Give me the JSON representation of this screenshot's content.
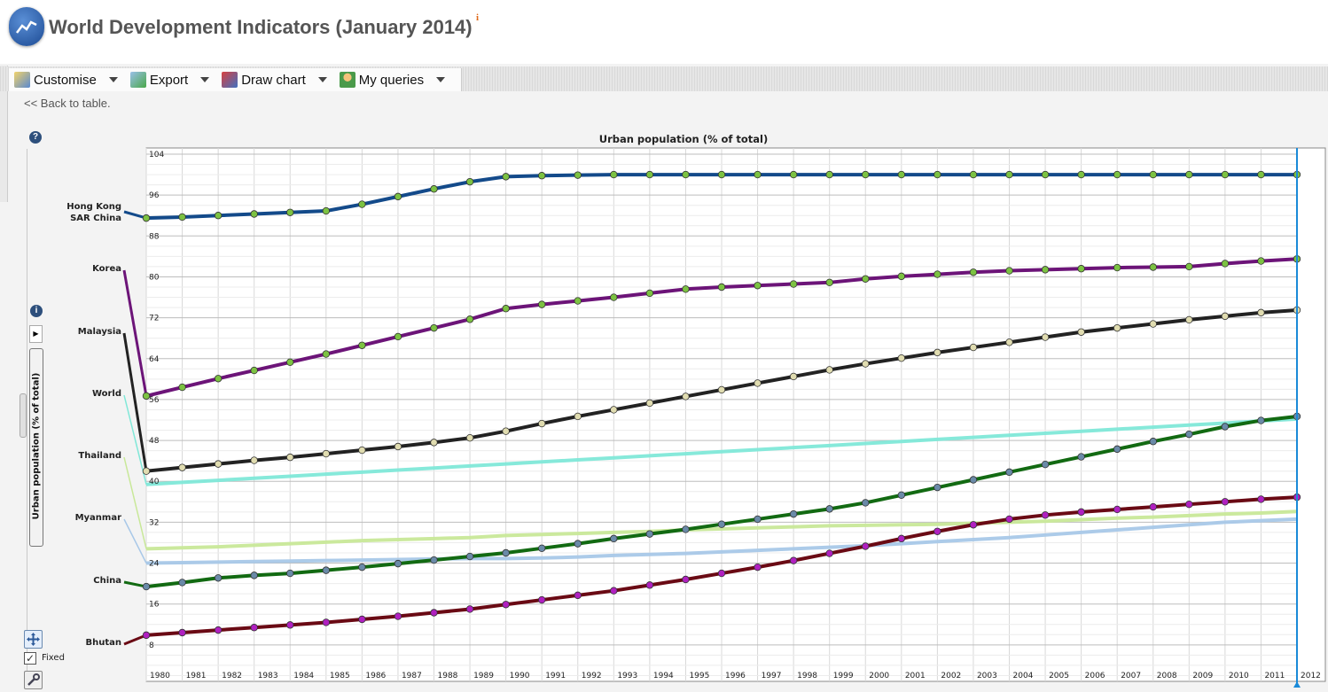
{
  "header": {
    "title": "World Development Indicators (January 2014)",
    "info_mark": "i"
  },
  "toolbar": {
    "items": [
      {
        "label": "Customise",
        "icon": "customise-icon"
      },
      {
        "label": "Export",
        "icon": "export-icon"
      },
      {
        "label": "Draw chart",
        "icon": "draw-chart-icon"
      },
      {
        "label": "My queries",
        "icon": "my-queries-icon"
      }
    ]
  },
  "back_link": "<< Back to table.",
  "side_panel": {
    "help": "?",
    "about": "i",
    "measure_tab": "Urban population (% of total)",
    "fixed_label": "Fixed",
    "fixed_checked": true
  },
  "chart_data": {
    "type": "line",
    "title": "Urban population (% of total)",
    "xlabel": "",
    "ylabel": "",
    "x": [
      1980,
      1981,
      1982,
      1983,
      1984,
      1985,
      1986,
      1987,
      1988,
      1989,
      1990,
      1991,
      1992,
      1993,
      1994,
      1995,
      1996,
      1997,
      1998,
      1999,
      2000,
      2001,
      2002,
      2003,
      2004,
      2005,
      2006,
      2007,
      2008,
      2009,
      2010,
      2011,
      2012
    ],
    "ylim": [
      0,
      104
    ],
    "yticks": [
      8,
      16,
      24,
      32,
      40,
      48,
      56,
      64,
      72,
      80,
      88,
      96,
      104
    ],
    "grid": true,
    "selected_year": 2012,
    "series": [
      {
        "name": "Hong Kong SAR China",
        "label_lines": [
          "Hong Kong",
          "SAR China"
        ],
        "color": "#134a8a",
        "marker": "#7cc242",
        "values": [
          91.5,
          91.7,
          92.0,
          92.3,
          92.6,
          92.9,
          94.2,
          95.7,
          97.2,
          98.6,
          99.6,
          99.8,
          99.9,
          100,
          100,
          100,
          100,
          100,
          100,
          100,
          100,
          100,
          100,
          100,
          100,
          100,
          100,
          100,
          100,
          100,
          100,
          100,
          100
        ]
      },
      {
        "name": "Korea",
        "label_lines": [
          "Korea"
        ],
        "color": "#6c1478",
        "marker": "#7cc242",
        "values": [
          56.7,
          58.4,
          60.1,
          61.7,
          63.3,
          64.9,
          66.6,
          68.3,
          70.0,
          71.7,
          73.8,
          74.6,
          75.3,
          76.0,
          76.8,
          77.6,
          78.0,
          78.3,
          78.6,
          78.9,
          79.6,
          80.1,
          80.5,
          80.9,
          81.2,
          81.4,
          81.6,
          81.8,
          81.9,
          82.0,
          82.6,
          83.1,
          83.5
        ]
      },
      {
        "name": "Malaysia",
        "label_lines": [
          "Malaysia"
        ],
        "color": "#222222",
        "marker": "#e0dcb0",
        "values": [
          42.0,
          42.7,
          43.4,
          44.1,
          44.7,
          45.4,
          46.1,
          46.8,
          47.6,
          48.5,
          49.8,
          51.3,
          52.7,
          54.0,
          55.3,
          56.6,
          57.9,
          59.2,
          60.5,
          61.8,
          63.0,
          64.1,
          65.2,
          66.2,
          67.2,
          68.2,
          69.2,
          70.0,
          70.8,
          71.6,
          72.3,
          73.0,
          73.5
        ]
      },
      {
        "name": "World",
        "label_lines": [
          "World"
        ],
        "color": "#80e8d8",
        "marker": null,
        "values": [
          39.4,
          39.8,
          40.2,
          40.6,
          41.0,
          41.4,
          41.8,
          42.2,
          42.6,
          43.0,
          43.4,
          43.8,
          44.2,
          44.6,
          45.0,
          45.4,
          45.8,
          46.2,
          46.6,
          47.0,
          47.4,
          47.8,
          48.2,
          48.6,
          49.0,
          49.4,
          49.8,
          50.2,
          50.6,
          51.0,
          51.4,
          51.8,
          52.2
        ]
      },
      {
        "name": "Thailand",
        "label_lines": [
          "Thailand"
        ],
        "color": "#c8e898",
        "marker": null,
        "values": [
          26.8,
          27.0,
          27.2,
          27.5,
          27.8,
          28.1,
          28.4,
          28.6,
          28.8,
          29.0,
          29.4,
          29.6,
          29.8,
          30.0,
          30.2,
          30.5,
          30.7,
          30.9,
          31.1,
          31.3,
          31.4,
          31.5,
          31.6,
          31.8,
          32.0,
          32.2,
          32.5,
          32.8,
          33.0,
          33.3,
          33.6,
          33.8,
          34.1
        ]
      },
      {
        "name": "Myanmar",
        "label_lines": [
          "Myanmar"
        ],
        "color": "#a8c8e8",
        "marker": null,
        "values": [
          24.0,
          24.1,
          24.2,
          24.3,
          24.4,
          24.5,
          24.6,
          24.7,
          24.8,
          24.9,
          24.9,
          25.0,
          25.2,
          25.5,
          25.7,
          25.9,
          26.2,
          26.5,
          26.8,
          27.1,
          27.4,
          27.8,
          28.2,
          28.6,
          29.0,
          29.5,
          30.0,
          30.5,
          31.0,
          31.5,
          32.0,
          32.3,
          32.6
        ]
      },
      {
        "name": "China",
        "label_lines": [
          "China"
        ],
        "color": "#126a12",
        "marker": "#6a8aa8",
        "values": [
          19.4,
          20.2,
          21.1,
          21.6,
          22.0,
          22.6,
          23.2,
          23.9,
          24.6,
          25.3,
          26.0,
          26.9,
          27.8,
          28.8,
          29.7,
          30.6,
          31.6,
          32.6,
          33.6,
          34.6,
          35.8,
          37.3,
          38.8,
          40.3,
          41.8,
          43.3,
          44.8,
          46.3,
          47.8,
          49.2,
          50.7,
          51.9,
          52.7
        ]
      },
      {
        "name": "Bhutan",
        "label_lines": [
          "Bhutan"
        ],
        "color": "#6a0a14",
        "marker": "#b020c0",
        "values": [
          9.9,
          10.4,
          10.9,
          11.4,
          11.9,
          12.4,
          13.0,
          13.6,
          14.3,
          15.0,
          15.9,
          16.8,
          17.7,
          18.6,
          19.7,
          20.8,
          22.0,
          23.2,
          24.5,
          25.9,
          27.3,
          28.8,
          30.2,
          31.5,
          32.6,
          33.4,
          34.0,
          34.5,
          35.0,
          35.5,
          36.0,
          36.5,
          36.9
        ]
      }
    ]
  }
}
